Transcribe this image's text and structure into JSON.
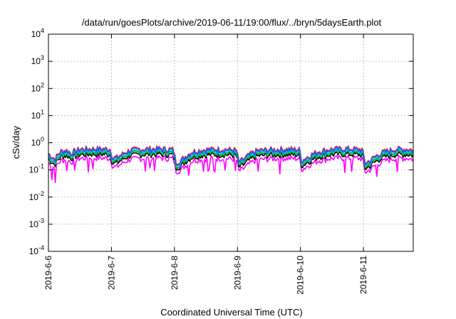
{
  "chart_data": {
    "type": "line",
    "title": "/data/run/goesPlots/archive/2019-06-11/19:00/flux/../bryn/5daysEarth.plot",
    "xlabel": "Coordinated Universal Time (UTC)",
    "ylabel": "cSv/day",
    "yscale": "log",
    "ylim": [
      0.0001,
      10000
    ],
    "xlim": [
      "2019-6-6",
      "2019-6-11 19:00"
    ],
    "y_ticks": [
      {
        "base": "10",
        "exp": "-4"
      },
      {
        "base": "10",
        "exp": "-3"
      },
      {
        "base": "10",
        "exp": "-2"
      },
      {
        "base": "10",
        "exp": "-1"
      },
      {
        "base": "10",
        "exp": "0"
      },
      {
        "base": "10",
        "exp": "1"
      },
      {
        "base": "10",
        "exp": "2"
      },
      {
        "base": "10",
        "exp": "3"
      },
      {
        "base": "10",
        "exp": "4"
      }
    ],
    "x_ticks": [
      "2019-6-6",
      "2019-6-7",
      "2019-6-8",
      "2019-6-9",
      "2019-6-10",
      "2019-6-11"
    ],
    "grid": true,
    "series_colors": [
      "#ff00ff",
      "#ff2020",
      "#000000",
      "#00aa00",
      "#00cccc",
      "#2255ff"
    ],
    "scale_factors": [
      0.45,
      1.0,
      0.62,
      0.72,
      0.8,
      0.92
    ],
    "base_profile": {
      "x": [
        0,
        0.1,
        0.2,
        0.3,
        0.35,
        0.5,
        0.75,
        0.98,
        1.02,
        1.1,
        1.3,
        1.5,
        1.75,
        1.98,
        2.02,
        2.1,
        2.3,
        2.5,
        2.75,
        2.98,
        3.02,
        3.1,
        3.3,
        3.5,
        3.75,
        3.98,
        4.02,
        4.1,
        4.3,
        4.5,
        4.75,
        4.98,
        5.02,
        5.1,
        5.3,
        5.5,
        5.7,
        5.79
      ],
      "y": [
        0.4,
        0.25,
        0.5,
        0.55,
        0.42,
        0.6,
        0.62,
        0.6,
        0.28,
        0.3,
        0.55,
        0.6,
        0.62,
        0.58,
        0.2,
        0.22,
        0.5,
        0.58,
        0.6,
        0.55,
        0.2,
        0.25,
        0.52,
        0.57,
        0.6,
        0.58,
        0.22,
        0.3,
        0.5,
        0.6,
        0.62,
        0.58,
        0.18,
        0.22,
        0.45,
        0.6,
        0.6,
        0.55
      ]
    }
  }
}
